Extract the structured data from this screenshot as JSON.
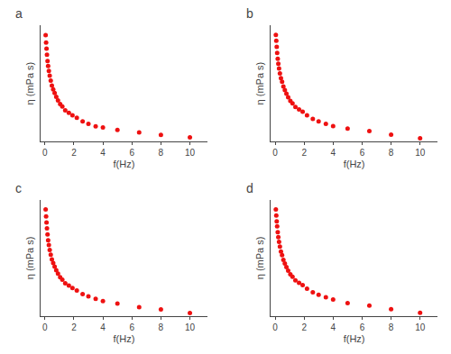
{
  "chart_data": [
    {
      "type": "scatter",
      "title": "a",
      "xlabel": "f(Hz)",
      "ylabel": "η (mPa s)",
      "color": "#EE1111",
      "marker": "circle",
      "x": [
        0.05,
        0.08,
        0.11,
        0.14,
        0.18,
        0.22,
        0.27,
        0.33,
        0.4,
        0.48,
        0.57,
        0.67,
        0.78,
        0.9,
        1.05,
        1.2,
        1.4,
        1.65,
        1.9,
        2.2,
        2.6,
        3.0,
        3.5,
        4.0,
        5.0,
        6.5,
        8.0,
        10.0
      ],
      "values": [
        1.0,
        0.94,
        0.89,
        0.84,
        0.79,
        0.75,
        0.71,
        0.67,
        0.63,
        0.59,
        0.56,
        0.53,
        0.5,
        0.47,
        0.44,
        0.42,
        0.39,
        0.37,
        0.35,
        0.33,
        0.3,
        0.28,
        0.26,
        0.25,
        0.23,
        0.21,
        0.19,
        0.17
      ],
      "xlim": [
        -0.3,
        11.2
      ],
      "xticks": [
        0,
        2,
        4,
        6,
        8,
        10
      ],
      "ylim": [
        0.136,
        1.08
      ],
      "grid": false,
      "tick_labels": "x"
    },
    {
      "type": "scatter",
      "title": "b",
      "xlabel": "f(Hz)",
      "ylabel": "η (mPa s)",
      "color": "#EE1111",
      "marker": "circle",
      "x": [
        0.05,
        0.08,
        0.11,
        0.14,
        0.18,
        0.22,
        0.27,
        0.33,
        0.4,
        0.48,
        0.57,
        0.67,
        0.78,
        0.9,
        1.05,
        1.2,
        1.4,
        1.65,
        1.9,
        2.2,
        2.6,
        3.0,
        3.5,
        4.0,
        5.0,
        6.5,
        8.0,
        10.0
      ],
      "values": [
        1.0,
        0.95,
        0.9,
        0.85,
        0.8,
        0.76,
        0.72,
        0.68,
        0.64,
        0.61,
        0.57,
        0.54,
        0.51,
        0.48,
        0.45,
        0.43,
        0.4,
        0.38,
        0.36,
        0.33,
        0.3,
        0.28,
        0.26,
        0.24,
        0.22,
        0.2,
        0.17,
        0.14
      ],
      "xlim": [
        -0.3,
        11.2
      ],
      "xticks": [
        0,
        2,
        4,
        6,
        8,
        10
      ],
      "ylim": [
        0.112,
        1.08
      ],
      "grid": false,
      "tick_labels": "x"
    },
    {
      "type": "scatter",
      "title": "c",
      "xlabel": "f(Hz)",
      "ylabel": "η (mPa s)",
      "color": "#EE1111",
      "marker": "circle",
      "x": [
        0.05,
        0.08,
        0.11,
        0.14,
        0.18,
        0.22,
        0.27,
        0.33,
        0.4,
        0.48,
        0.57,
        0.67,
        0.78,
        0.9,
        1.05,
        1.2,
        1.4,
        1.65,
        1.9,
        2.2,
        2.6,
        3.0,
        3.5,
        4.0,
        5.0,
        6.5,
        8.0,
        10.0
      ],
      "values": [
        1.0,
        0.94,
        0.89,
        0.84,
        0.79,
        0.74,
        0.7,
        0.66,
        0.62,
        0.58,
        0.55,
        0.52,
        0.49,
        0.46,
        0.43,
        0.41,
        0.38,
        0.36,
        0.34,
        0.32,
        0.29,
        0.27,
        0.25,
        0.23,
        0.21,
        0.18,
        0.16,
        0.13
      ],
      "xlim": [
        -0.3,
        11.2
      ],
      "xticks": [
        0,
        2,
        4,
        6,
        8,
        10
      ],
      "ylim": [
        0.104,
        1.08
      ],
      "grid": false,
      "tick_labels": "x"
    },
    {
      "type": "scatter",
      "title": "d",
      "xlabel": "f(Hz)",
      "ylabel": "η (mPa s)",
      "color": "#EE1111",
      "marker": "circle",
      "x": [
        0.05,
        0.08,
        0.11,
        0.14,
        0.18,
        0.22,
        0.27,
        0.33,
        0.4,
        0.48,
        0.57,
        0.67,
        0.78,
        0.9,
        1.05,
        1.2,
        1.4,
        1.65,
        1.9,
        2.2,
        2.6,
        3.0,
        3.5,
        4.0,
        5.0,
        6.5,
        8.0,
        10.0
      ],
      "values": [
        1.0,
        0.95,
        0.9,
        0.86,
        0.81,
        0.77,
        0.73,
        0.69,
        0.65,
        0.62,
        0.58,
        0.55,
        0.52,
        0.49,
        0.46,
        0.44,
        0.41,
        0.39,
        0.37,
        0.34,
        0.31,
        0.29,
        0.27,
        0.25,
        0.22,
        0.2,
        0.17,
        0.14
      ],
      "xlim": [
        -0.3,
        11.2
      ],
      "xticks": [
        0,
        2,
        4,
        6,
        8,
        10
      ],
      "ylim": [
        0.112,
        1.08
      ],
      "grid": false,
      "tick_labels": "x"
    }
  ]
}
